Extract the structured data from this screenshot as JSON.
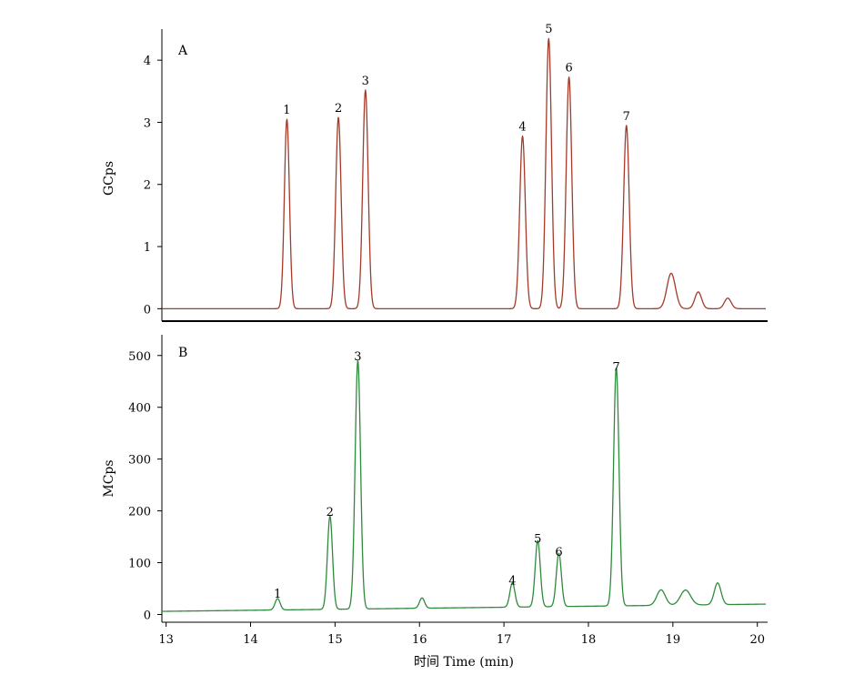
{
  "chart_data": [
    {
      "type": "line",
      "panel_label": "A",
      "ylabel": "GCps",
      "xlabel": "",
      "xlim": [
        12.95,
        20.1
      ],
      "ylim": [
        -0.2,
        4.5
      ],
      "yticks": [
        0,
        1,
        2,
        3,
        4
      ],
      "color": "#a33a2a",
      "baseline": 0.0,
      "peaks": [
        {
          "label": "1",
          "x": 14.43,
          "y": 3.05,
          "width": 0.03
        },
        {
          "label": "2",
          "x": 15.04,
          "y": 3.08,
          "width": 0.032
        },
        {
          "label": "3",
          "x": 15.36,
          "y": 3.52,
          "width": 0.032
        },
        {
          "label": "4",
          "x": 17.22,
          "y": 2.78,
          "width": 0.033
        },
        {
          "label": "5",
          "x": 17.53,
          "y": 4.35,
          "width": 0.033
        },
        {
          "label": "6",
          "x": 17.77,
          "y": 3.73,
          "width": 0.033
        },
        {
          "label": "7",
          "x": 18.45,
          "y": 2.95,
          "width": 0.033
        },
        {
          "label": "",
          "x": 18.98,
          "y": 0.57,
          "width": 0.05
        },
        {
          "label": "",
          "x": 19.3,
          "y": 0.27,
          "width": 0.04
        },
        {
          "label": "",
          "x": 19.65,
          "y": 0.17,
          "width": 0.04
        }
      ]
    },
    {
      "type": "line",
      "panel_label": "B",
      "ylabel": "MCps",
      "xlabel": "时间 Time (min)",
      "xlim": [
        12.95,
        20.1
      ],
      "ylim": [
        -15,
        540
      ],
      "yticks": [
        0,
        100,
        200,
        300,
        400,
        500
      ],
      "xticks": [
        13,
        14,
        15,
        16,
        17,
        18,
        19,
        20
      ],
      "color": "#2e8b3c",
      "baseline_start": 6,
      "baseline_end": 20,
      "peaks": [
        {
          "label": "1",
          "x": 14.32,
          "y": 22,
          "width": 0.03
        },
        {
          "label": "2",
          "x": 14.94,
          "y": 180,
          "width": 0.03
        },
        {
          "label": "3",
          "x": 15.27,
          "y": 480,
          "width": 0.032
        },
        {
          "label": "4",
          "x": 17.1,
          "y": 47,
          "width": 0.03
        },
        {
          "label": "5",
          "x": 17.4,
          "y": 128,
          "width": 0.03
        },
        {
          "label": "6",
          "x": 17.65,
          "y": 103,
          "width": 0.03
        },
        {
          "label": "7",
          "x": 18.33,
          "y": 460,
          "width": 0.032
        },
        {
          "label": "",
          "x": 16.03,
          "y": 20,
          "width": 0.03
        },
        {
          "label": "",
          "x": 18.86,
          "y": 30,
          "width": 0.05
        },
        {
          "label": "",
          "x": 19.15,
          "y": 29,
          "width": 0.06
        },
        {
          "label": "",
          "x": 19.53,
          "y": 42,
          "width": 0.04
        }
      ]
    }
  ]
}
